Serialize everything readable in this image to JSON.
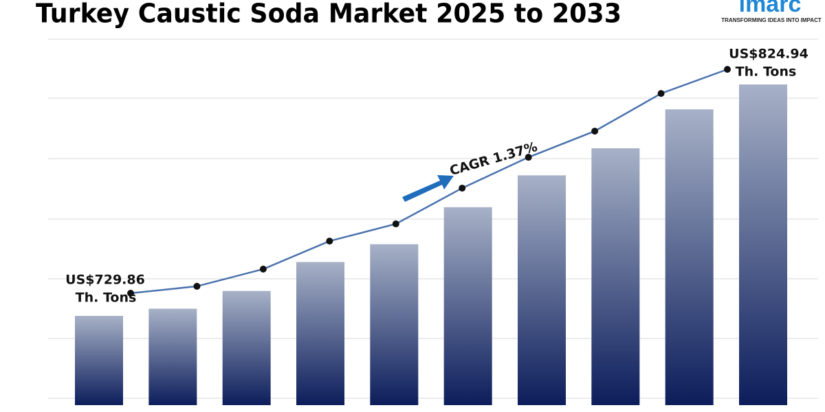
{
  "chart_data": {
    "type": "bar-line",
    "title": "Turkey Caustic Soda Market 2025 to 2033",
    "values": [
      729.86,
      732.8,
      740.1,
      752.0,
      759.3,
      774.5,
      787.6,
      798.7,
      814.7,
      824.94
    ],
    "value_labels": [
      "US$729.86",
      null,
      null,
      null,
      null,
      null,
      null,
      null,
      null,
      "US$824.94"
    ],
    "units": "Th. Tons",
    "cagr_label": "CAGR 1.37%",
    "bar_gradient": [
      "#a7b1c7",
      "#0c1d5b"
    ],
    "line_color": "#4a72ad",
    "marker_color": "#111111"
  },
  "logo": {
    "name": "imarc",
    "tagline": "TRANSFORMING IDEAS INTO IMPACT"
  }
}
